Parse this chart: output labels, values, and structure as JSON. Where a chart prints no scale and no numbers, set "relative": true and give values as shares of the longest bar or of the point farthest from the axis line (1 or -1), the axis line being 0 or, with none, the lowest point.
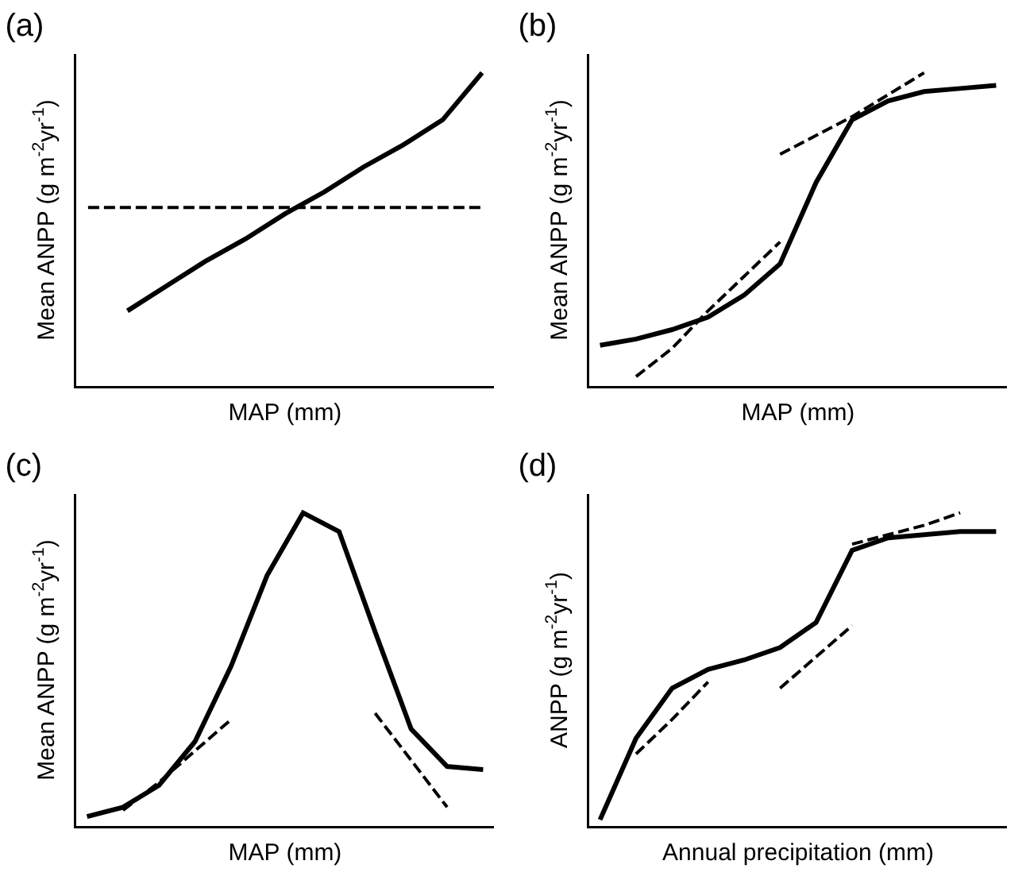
{
  "chart_data": [
    {
      "type": "line",
      "title": "(a)",
      "xlabel": "MAP (mm)",
      "ylabel": "Mean ANPP (g m$^{-2}$yr$^{-1}$)",
      "relative": true,
      "marker": "none",
      "categories": [
        null,
        null,
        null,
        null,
        null,
        null,
        null,
        null,
        null,
        null,
        null
      ],
      "series": [
        {
          "color": "#000000",
          "line_style": "solid",
          "values": [
            null,
            0.24,
            0.32,
            0.4,
            0.47,
            0.55,
            0.62,
            0.7,
            0.77,
            0.85,
            1.0
          ]
        },
        {
          "color": "#000000",
          "line_style": "dashed",
          "values": [
            0.57,
            0.57,
            0.57,
            0.57,
            0.57,
            0.57,
            0.57,
            0.57,
            0.57,
            0.57,
            0.57
          ]
        }
      ]
    },
    {
      "type": "line",
      "title": "(b)",
      "xlabel": "MAP (mm)",
      "ylabel": "Mean ANPP (g m$^{-2}$yr$^{-1}$)",
      "relative": true,
      "marker": "none",
      "categories": [
        null,
        null,
        null,
        null,
        null,
        null,
        null,
        null,
        null,
        null,
        null,
        null
      ],
      "series": [
        {
          "color": "#000000",
          "line_style": "solid",
          "values": [
            0.13,
            0.15,
            0.18,
            0.22,
            0.29,
            0.39,
            0.65,
            0.85,
            0.91,
            0.94,
            0.95,
            0.96
          ]
        },
        {
          "color": "#000000",
          "line_style": "dashed",
          "values": [
            null,
            0.03,
            0.12,
            0.24,
            0.35,
            0.46,
            null,
            null,
            null,
            null,
            null,
            null
          ]
        },
        {
          "color": "#000000",
          "line_style": "dashed",
          "values": [
            null,
            null,
            null,
            null,
            null,
            0.74,
            0.8,
            0.86,
            0.93,
            1.0,
            null,
            null
          ]
        }
      ]
    },
    {
      "type": "line",
      "title": "(c)",
      "xlabel": "MAP (mm)",
      "ylabel": "Mean ANPP (g m$^{-2}$yr$^{-1}$)",
      "relative": true,
      "marker": "none",
      "categories": [
        null,
        null,
        null,
        null,
        null,
        null,
        null,
        null,
        null,
        null,
        null,
        null
      ],
      "series": [
        {
          "color": "#000000",
          "line_style": "solid",
          "values": [
            0.03,
            0.06,
            0.13,
            0.27,
            0.51,
            0.8,
            1.0,
            0.94,
            0.62,
            0.31,
            0.19,
            0.18
          ]
        },
        {
          "color": "#000000",
          "line_style": "dashed",
          "values": [
            null,
            0.05,
            0.14,
            0.24,
            0.34,
            null,
            null,
            null,
            null,
            null,
            null,
            null
          ]
        },
        {
          "color": "#000000",
          "line_style": "dashed",
          "values": [
            null,
            null,
            null,
            null,
            null,
            null,
            null,
            null,
            0.36,
            0.21,
            0.06,
            null
          ]
        }
      ]
    },
    {
      "type": "line",
      "title": "(d)",
      "xlabel": "Annual precipitation (mm)",
      "ylabel": "ANPP (g m$^{-2}$yr$^{-1}$)",
      "relative": true,
      "marker": "none",
      "categories": [
        null,
        null,
        null,
        null,
        null,
        null,
        null,
        null,
        null,
        null,
        null,
        null
      ],
      "series": [
        {
          "color": "#000000",
          "line_style": "solid",
          "values": [
            0.02,
            0.28,
            0.44,
            0.5,
            0.53,
            0.57,
            0.65,
            0.88,
            0.92,
            0.93,
            0.94,
            0.94
          ]
        },
        {
          "color": "#000000",
          "line_style": "dashed",
          "values": [
            null,
            0.23,
            0.34,
            0.46,
            null,
            null,
            null,
            null,
            null,
            null,
            null,
            null
          ]
        },
        {
          "color": "#000000",
          "line_style": "dashed",
          "values": [
            null,
            null,
            null,
            null,
            null,
            0.44,
            0.54,
            0.64,
            null,
            null,
            null,
            null
          ]
        },
        {
          "color": "#000000",
          "line_style": "dashed",
          "values": [
            null,
            null,
            null,
            null,
            null,
            null,
            null,
            0.9,
            0.93,
            0.96,
            1.0,
            null
          ]
        }
      ]
    }
  ]
}
